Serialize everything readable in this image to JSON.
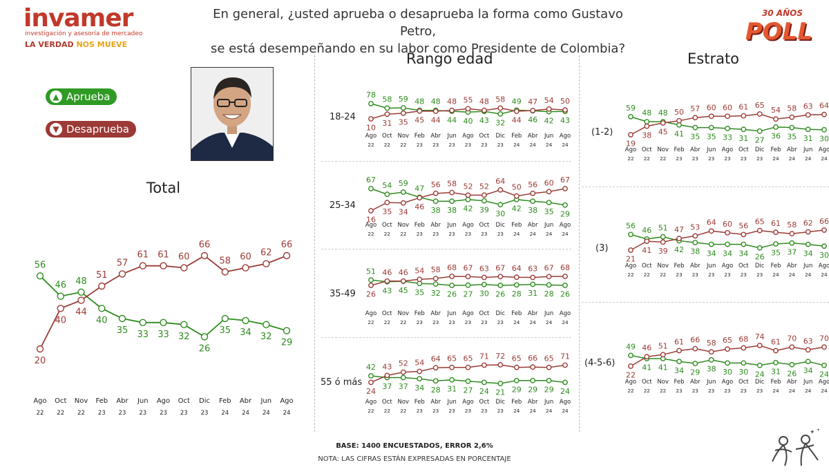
{
  "header": {
    "logo_word": "invamer",
    "logo_subtitle": "investigación y asesoría de mercadeo",
    "tagline_part1": "LA VERDAD ",
    "tagline_part2": "NOS MUEVE",
    "question_line1": "En general, ¿usted aprueba o desaprueba la forma como Gustavo Petro,",
    "question_line2": "se está desempeñando en su labor como Presidente de Colombia?",
    "badge_years": "30 AÑOS",
    "badge_word": "POLL"
  },
  "legend": {
    "approve_label": "Aprueba",
    "disapprove_label": "Desaprueba"
  },
  "sections": {
    "total_title": "Total",
    "age_title": "Rango edad",
    "strata_title": "Estrato"
  },
  "colors": {
    "approve": "#2e8b1e",
    "disapprove": "#9b3a36",
    "approve_pill": "#2f9a24",
    "disapprove_pill": "#9b3a36"
  },
  "footer": {
    "base": "BASE: 1400 ENCUESTADOS, ERROR 2,6%",
    "note": "NOTA: LAS CIFRAS ESTÁN EXPRESADAS EN PORCENTAJE"
  },
  "chart_data": [
    {
      "type": "line",
      "panel": "Total",
      "categories": [
        [
          "Ago",
          "22"
        ],
        [
          "Oct",
          "22"
        ],
        [
          "Nov",
          "22"
        ],
        [
          "Feb",
          "23"
        ],
        [
          "Abr",
          "23"
        ],
        [
          "Jun",
          "23"
        ],
        [
          "Ago",
          "23"
        ],
        [
          "Oct",
          "23"
        ],
        [
          "Dic",
          "23"
        ],
        [
          "Feb",
          "24"
        ],
        [
          "Abr",
          "24"
        ],
        [
          "Jun",
          "24"
        ],
        [
          "Ago",
          "24"
        ]
      ],
      "series": [
        {
          "name": "Aprueba",
          "values": [
            56,
            46,
            48,
            40,
            35,
            33,
            33,
            32,
            26,
            35,
            34,
            32,
            29
          ]
        },
        {
          "name": "Desaprueba",
          "values": [
            20,
            40,
            44,
            51,
            57,
            61,
            61,
            60,
            66,
            58,
            60,
            62,
            66
          ]
        }
      ]
    },
    {
      "type": "line",
      "panel": "Rango edad",
      "row_label": "18-24",
      "categories": [
        [
          "Ago",
          "22"
        ],
        [
          "Oct",
          "22"
        ],
        [
          "Nov",
          "22"
        ],
        [
          "Feb",
          "23"
        ],
        [
          "Abr",
          "23"
        ],
        [
          "Jun",
          "23"
        ],
        [
          "Ago",
          "23"
        ],
        [
          "Oct",
          "23"
        ],
        [
          "Dic",
          "23"
        ],
        [
          "Feb",
          "24"
        ],
        [
          "Abr",
          "24"
        ],
        [
          "Jun",
          "24"
        ],
        [
          "Ago",
          "24"
        ]
      ],
      "series": [
        {
          "name": "Aprueba",
          "values": [
            78,
            58,
            59,
            48,
            48,
            44,
            40,
            43,
            32,
            49,
            46,
            42,
            43
          ]
        },
        {
          "name": "Desaprueba",
          "values": [
            10,
            31,
            35,
            45,
            44,
            48,
            55,
            48,
            58,
            44,
            47,
            54,
            50
          ]
        }
      ]
    },
    {
      "type": "line",
      "panel": "Rango edad",
      "row_label": "25-34",
      "categories": [
        [
          "Ago",
          "22"
        ],
        [
          "Oct",
          "22"
        ],
        [
          "Nov",
          "22"
        ],
        [
          "Feb",
          "23"
        ],
        [
          "Abr",
          "23"
        ],
        [
          "Jun",
          "23"
        ],
        [
          "Ago",
          "23"
        ],
        [
          "Oct",
          "23"
        ],
        [
          "Dic",
          "23"
        ],
        [
          "Feb",
          "24"
        ],
        [
          "Abr",
          "24"
        ],
        [
          "Jun",
          "24"
        ],
        [
          "Ago",
          "24"
        ]
      ],
      "series": [
        {
          "name": "Aprueba",
          "values": [
            67,
            54,
            59,
            47,
            38,
            38,
            42,
            39,
            30,
            42,
            38,
            35,
            29
          ]
        },
        {
          "name": "Desaprueba",
          "values": [
            16,
            35,
            34,
            46,
            56,
            58,
            52,
            52,
            64,
            50,
            56,
            60,
            67
          ]
        }
      ]
    },
    {
      "type": "line",
      "panel": "Rango edad",
      "row_label": "35-49",
      "categories": [
        [
          "Ago",
          "22"
        ],
        [
          "Oct",
          "22"
        ],
        [
          "Nov",
          "22"
        ],
        [
          "Feb",
          "23"
        ],
        [
          "Abr",
          "23"
        ],
        [
          "Jun",
          "23"
        ],
        [
          "Ago",
          "23"
        ],
        [
          "Oct",
          "23"
        ],
        [
          "Dic",
          "23"
        ],
        [
          "Feb",
          "24"
        ],
        [
          "Abr",
          "24"
        ],
        [
          "Jun",
          "24"
        ],
        [
          "Ago",
          "24"
        ]
      ],
      "series": [
        {
          "name": "Aprueba",
          "values": [
            51,
            43,
            45,
            35,
            32,
            26,
            27,
            30,
            26,
            28,
            31,
            28,
            26
          ]
        },
        {
          "name": "Desaprueba",
          "values": [
            26,
            46,
            46,
            54,
            58,
            68,
            67,
            63,
            67,
            64,
            63,
            67,
            68
          ]
        }
      ]
    },
    {
      "type": "line",
      "panel": "Rango edad",
      "row_label": "55 ó más",
      "categories": [
        [
          "Ago",
          "22"
        ],
        [
          "Oct",
          "22"
        ],
        [
          "Nov",
          "22"
        ],
        [
          "Feb",
          "23"
        ],
        [
          "Abr",
          "23"
        ],
        [
          "Jun",
          "23"
        ],
        [
          "Ago",
          "23"
        ],
        [
          "Oct",
          "23"
        ],
        [
          "Dic",
          "23"
        ],
        [
          "Feb",
          "24"
        ],
        [
          "Abr",
          "24"
        ],
        [
          "Jun",
          "24"
        ],
        [
          "Ago",
          "24"
        ]
      ],
      "series": [
        {
          "name": "Aprueba",
          "values": [
            42,
            37,
            37,
            34,
            28,
            31,
            27,
            24,
            21,
            29,
            29,
            29,
            24
          ]
        },
        {
          "name": "Desaprueba",
          "values": [
            24,
            43,
            52,
            54,
            64,
            65,
            65,
            71,
            72,
            65,
            66,
            65,
            71
          ]
        }
      ]
    },
    {
      "type": "line",
      "panel": "Estrato",
      "row_label": "(1-2)",
      "categories": [
        [
          "Ago",
          "22"
        ],
        [
          "Oct",
          "22"
        ],
        [
          "Nov",
          "22"
        ],
        [
          "Feb",
          "23"
        ],
        [
          "Abr",
          "23"
        ],
        [
          "Jun",
          "23"
        ],
        [
          "Ago",
          "23"
        ],
        [
          "Oct",
          "23"
        ],
        [
          "Dic",
          "23"
        ],
        [
          "Feb",
          "24"
        ],
        [
          "Abr",
          "24"
        ],
        [
          "Jun",
          "24"
        ],
        [
          "Ago",
          "24"
        ]
      ],
      "series": [
        {
          "name": "Aprueba",
          "values": [
            59,
            48,
            48,
            41,
            35,
            35,
            33,
            31,
            27,
            36,
            35,
            31,
            30
          ]
        },
        {
          "name": "Desaprueba",
          "values": [
            19,
            38,
            45,
            50,
            57,
            60,
            60,
            61,
            65,
            54,
            58,
            63,
            64
          ]
        }
      ]
    },
    {
      "type": "line",
      "panel": "Estrato",
      "row_label": "(3)",
      "categories": [
        [
          "Ago",
          "22"
        ],
        [
          "Oct",
          "22"
        ],
        [
          "Nov",
          "22"
        ],
        [
          "Feb",
          "23"
        ],
        [
          "Abr",
          "23"
        ],
        [
          "Jun",
          "23"
        ],
        [
          "Ago",
          "23"
        ],
        [
          "Oct",
          "23"
        ],
        [
          "Dic",
          "23"
        ],
        [
          "Feb",
          "24"
        ],
        [
          "Abr",
          "24"
        ],
        [
          "Jun",
          "24"
        ],
        [
          "Ago",
          "24"
        ]
      ],
      "series": [
        {
          "name": "Aprueba",
          "values": [
            56,
            46,
            51,
            42,
            38,
            34,
            34,
            34,
            26,
            35,
            37,
            34,
            30
          ]
        },
        {
          "name": "Desaprueba",
          "values": [
            21,
            41,
            39,
            47,
            53,
            64,
            60,
            56,
            65,
            61,
            58,
            62,
            66
          ]
        }
      ]
    },
    {
      "type": "line",
      "panel": "Estrato",
      "row_label": "(4-5-6)",
      "categories": [
        [
          "Ago",
          "22"
        ],
        [
          "Oct",
          "22"
        ],
        [
          "Nov",
          "22"
        ],
        [
          "Feb",
          "23"
        ],
        [
          "Abr",
          "23"
        ],
        [
          "Jun",
          "23"
        ],
        [
          "Ago",
          "23"
        ],
        [
          "Oct",
          "23"
        ],
        [
          "Dic",
          "23"
        ],
        [
          "Feb",
          "24"
        ],
        [
          "Abr",
          "24"
        ],
        [
          "Jun",
          "24"
        ],
        [
          "Ago",
          "24"
        ]
      ],
      "series": [
        {
          "name": "Aprueba",
          "values": [
            49,
            41,
            41,
            34,
            29,
            38,
            30,
            30,
            24,
            31,
            26,
            34,
            24
          ]
        },
        {
          "name": "Desaprueba",
          "values": [
            22,
            46,
            51,
            61,
            66,
            58,
            65,
            68,
            74,
            61,
            70,
            63,
            70
          ]
        }
      ]
    }
  ]
}
